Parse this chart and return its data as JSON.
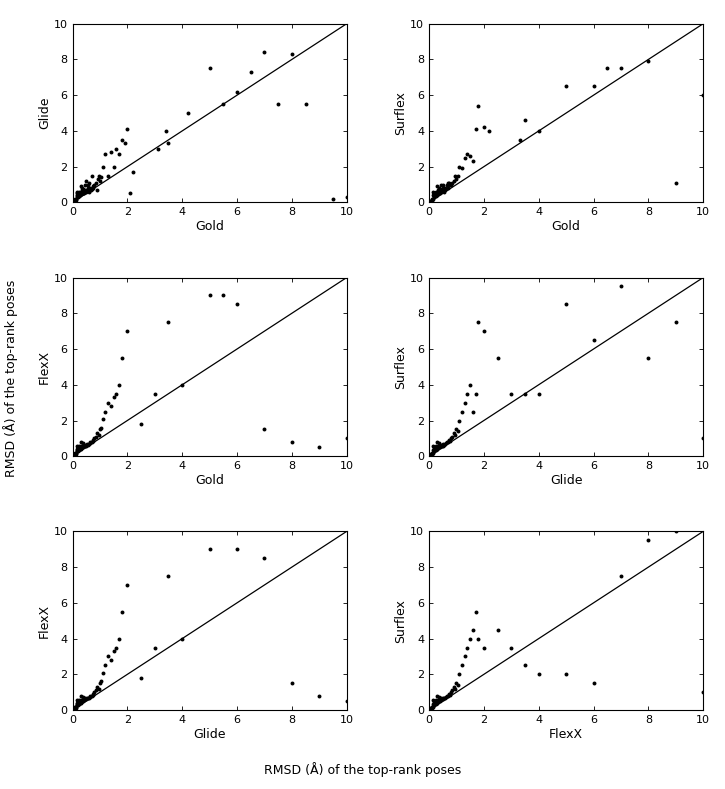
{
  "panel_configs": [
    {
      "xlabel": "Gold",
      "ylabel": "Glide"
    },
    {
      "xlabel": "Gold",
      "ylabel": "Surflex"
    },
    {
      "xlabel": "Gold",
      "ylabel": "FlexX"
    },
    {
      "xlabel": "Glide",
      "ylabel": "Surflex"
    },
    {
      "xlabel": "Glide",
      "ylabel": "FlexX"
    },
    {
      "xlabel": "FlexX",
      "ylabel": "Surflex"
    }
  ],
  "panel_data": [
    {
      "x": [
        0.05,
        0.07,
        0.08,
        0.1,
        0.1,
        0.12,
        0.13,
        0.15,
        0.15,
        0.17,
        0.18,
        0.2,
        0.2,
        0.22,
        0.23,
        0.25,
        0.25,
        0.27,
        0.28,
        0.3,
        0.3,
        0.32,
        0.33,
        0.35,
        0.35,
        0.37,
        0.38,
        0.4,
        0.4,
        0.42,
        0.43,
        0.45,
        0.45,
        0.47,
        0.5,
        0.5,
        0.52,
        0.55,
        0.55,
        0.58,
        0.6,
        0.6,
        0.63,
        0.65,
        0.68,
        0.7,
        0.7,
        0.73,
        0.75,
        0.8,
        0.85,
        0.9,
        0.92,
        0.95,
        1.0,
        1.05,
        1.1,
        1.2,
        1.3,
        1.4,
        1.5,
        1.6,
        1.7,
        1.8,
        1.9,
        2.0,
        2.1,
        2.2,
        3.1,
        3.4,
        3.5,
        4.2,
        5.0,
        5.5,
        6.0,
        6.5,
        7.0,
        7.5,
        8.0,
        8.5,
        9.5,
        10.0
      ],
      "y": [
        0.05,
        0.08,
        0.1,
        0.15,
        0.2,
        0.12,
        0.18,
        0.4,
        0.6,
        0.5,
        0.35,
        0.3,
        0.55,
        0.45,
        0.5,
        0.35,
        0.6,
        0.5,
        0.4,
        0.45,
        0.9,
        0.6,
        0.7,
        0.5,
        0.8,
        0.65,
        0.55,
        0.5,
        0.75,
        0.6,
        0.55,
        0.7,
        1.0,
        0.6,
        0.6,
        1.2,
        0.7,
        0.7,
        1.0,
        0.8,
        0.6,
        1.1,
        0.7,
        0.8,
        0.7,
        0.75,
        1.5,
        0.8,
        0.9,
        1.0,
        1.1,
        0.7,
        1.3,
        1.5,
        1.2,
        1.4,
        2.0,
        2.7,
        1.5,
        2.8,
        2.0,
        3.0,
        2.7,
        3.5,
        3.3,
        4.1,
        0.5,
        1.7,
        3.0,
        4.0,
        3.3,
        5.0,
        7.5,
        5.5,
        6.2,
        7.3,
        8.4,
        5.5,
        8.3,
        5.5,
        0.2,
        0.3
      ]
    },
    {
      "x": [
        0.05,
        0.07,
        0.08,
        0.1,
        0.1,
        0.12,
        0.13,
        0.15,
        0.15,
        0.17,
        0.18,
        0.2,
        0.2,
        0.22,
        0.23,
        0.25,
        0.25,
        0.27,
        0.28,
        0.3,
        0.3,
        0.32,
        0.33,
        0.35,
        0.37,
        0.4,
        0.4,
        0.42,
        0.45,
        0.45,
        0.5,
        0.5,
        0.52,
        0.55,
        0.6,
        0.6,
        0.65,
        0.68,
        0.7,
        0.72,
        0.75,
        0.8,
        0.85,
        0.9,
        0.95,
        1.0,
        1.05,
        1.1,
        1.2,
        1.3,
        1.4,
        1.5,
        1.6,
        1.7,
        1.8,
        2.0,
        2.2,
        3.3,
        3.5,
        4.0,
        5.0,
        6.0,
        6.5,
        7.0,
        8.0,
        9.0,
        10.0
      ],
      "y": [
        0.05,
        0.08,
        0.1,
        0.15,
        0.2,
        0.12,
        0.18,
        0.4,
        0.6,
        0.5,
        0.35,
        0.3,
        0.55,
        0.45,
        0.5,
        0.35,
        0.6,
        0.5,
        0.4,
        0.45,
        0.9,
        0.6,
        0.7,
        0.5,
        0.8,
        0.55,
        0.75,
        0.65,
        0.7,
        1.0,
        0.7,
        1.0,
        0.8,
        0.6,
        0.7,
        0.8,
        1.0,
        1.1,
        0.8,
        1.1,
        1.0,
        1.0,
        1.1,
        1.2,
        1.5,
        1.3,
        1.5,
        2.0,
        1.9,
        2.5,
        2.7,
        2.6,
        2.3,
        4.1,
        5.4,
        4.2,
        4.0,
        3.5,
        4.6,
        4.0,
        6.5,
        6.5,
        7.5,
        7.5,
        7.9,
        1.1,
        6.0
      ]
    },
    {
      "x": [
        0.05,
        0.07,
        0.08,
        0.1,
        0.1,
        0.12,
        0.13,
        0.15,
        0.15,
        0.17,
        0.18,
        0.2,
        0.2,
        0.22,
        0.23,
        0.25,
        0.25,
        0.27,
        0.28,
        0.3,
        0.3,
        0.32,
        0.35,
        0.38,
        0.4,
        0.42,
        0.45,
        0.47,
        0.5,
        0.52,
        0.55,
        0.6,
        0.63,
        0.65,
        0.7,
        0.73,
        0.75,
        0.8,
        0.85,
        0.9,
        0.95,
        1.0,
        1.05,
        1.1,
        1.2,
        1.3,
        1.4,
        1.5,
        1.6,
        1.7,
        1.8,
        2.0,
        2.5,
        3.0,
        3.5,
        4.0,
        5.0,
        5.5,
        6.0,
        7.0,
        8.0,
        9.0,
        10.0
      ],
      "y": [
        0.05,
        0.1,
        0.12,
        0.15,
        0.2,
        0.12,
        0.18,
        0.35,
        0.55,
        0.4,
        0.3,
        0.28,
        0.5,
        0.4,
        0.45,
        0.35,
        0.55,
        0.45,
        0.38,
        0.42,
        0.8,
        0.55,
        0.5,
        0.75,
        0.5,
        0.55,
        0.65,
        0.6,
        0.6,
        0.7,
        0.65,
        0.7,
        0.75,
        0.8,
        0.8,
        0.9,
        0.85,
        1.0,
        1.1,
        1.3,
        1.2,
        1.5,
        1.6,
        2.1,
        2.5,
        3.0,
        2.8,
        3.3,
        3.5,
        4.0,
        5.5,
        7.0,
        1.8,
        3.5,
        7.5,
        4.0,
        9.0,
        9.0,
        8.5,
        1.5,
        0.8,
        0.5,
        1.0
      ]
    },
    {
      "x": [
        0.05,
        0.07,
        0.08,
        0.1,
        0.1,
        0.12,
        0.13,
        0.15,
        0.15,
        0.17,
        0.18,
        0.2,
        0.2,
        0.22,
        0.23,
        0.25,
        0.25,
        0.27,
        0.28,
        0.3,
        0.3,
        0.32,
        0.35,
        0.38,
        0.4,
        0.42,
        0.45,
        0.47,
        0.5,
        0.52,
        0.55,
        0.6,
        0.63,
        0.65,
        0.7,
        0.73,
        0.75,
        0.8,
        0.85,
        0.9,
        0.95,
        1.0,
        1.05,
        1.1,
        1.2,
        1.3,
        1.4,
        1.5,
        1.6,
        1.7,
        1.8,
        2.0,
        2.5,
        3.0,
        3.5,
        4.0,
        5.0,
        6.0,
        7.0,
        8.0,
        9.0,
        10.0
      ],
      "y": [
        0.05,
        0.1,
        0.12,
        0.15,
        0.2,
        0.12,
        0.18,
        0.35,
        0.55,
        0.4,
        0.3,
        0.28,
        0.5,
        0.4,
        0.45,
        0.35,
        0.55,
        0.45,
        0.38,
        0.42,
        0.8,
        0.55,
        0.5,
        0.75,
        0.5,
        0.55,
        0.65,
        0.6,
        0.6,
        0.7,
        0.65,
        0.7,
        0.75,
        0.8,
        0.8,
        0.9,
        0.85,
        1.0,
        1.1,
        1.3,
        1.2,
        1.5,
        1.4,
        2.0,
        2.5,
        3.0,
        3.5,
        4.0,
        2.5,
        3.5,
        7.5,
        7.0,
        5.5,
        3.5,
        3.5,
        3.5,
        8.5,
        6.5,
        9.5,
        5.5,
        7.5,
        1.0
      ]
    },
    {
      "x": [
        0.05,
        0.07,
        0.08,
        0.1,
        0.1,
        0.12,
        0.13,
        0.15,
        0.15,
        0.17,
        0.18,
        0.2,
        0.2,
        0.22,
        0.23,
        0.25,
        0.25,
        0.27,
        0.28,
        0.3,
        0.3,
        0.32,
        0.35,
        0.38,
        0.4,
        0.42,
        0.45,
        0.47,
        0.5,
        0.52,
        0.55,
        0.6,
        0.63,
        0.65,
        0.7,
        0.73,
        0.75,
        0.8,
        0.85,
        0.9,
        0.95,
        1.0,
        1.05,
        1.1,
        1.2,
        1.3,
        1.4,
        1.5,
        1.6,
        1.7,
        1.8,
        2.0,
        2.5,
        3.0,
        3.5,
        4.0,
        5.0,
        6.0,
        7.0,
        8.0,
        9.0,
        10.0
      ],
      "y": [
        0.05,
        0.1,
        0.12,
        0.15,
        0.2,
        0.12,
        0.18,
        0.35,
        0.55,
        0.4,
        0.3,
        0.28,
        0.5,
        0.4,
        0.45,
        0.35,
        0.55,
        0.45,
        0.38,
        0.42,
        0.8,
        0.55,
        0.5,
        0.75,
        0.5,
        0.55,
        0.65,
        0.6,
        0.6,
        0.7,
        0.65,
        0.7,
        0.75,
        0.8,
        0.8,
        0.9,
        0.85,
        1.0,
        1.1,
        1.3,
        1.2,
        1.5,
        1.6,
        2.1,
        2.5,
        3.0,
        2.8,
        3.3,
        3.5,
        4.0,
        5.5,
        7.0,
        1.8,
        3.5,
        7.5,
        4.0,
        9.0,
        9.0,
        8.5,
        1.5,
        0.8,
        0.5
      ]
    },
    {
      "x": [
        0.05,
        0.07,
        0.08,
        0.1,
        0.1,
        0.12,
        0.13,
        0.15,
        0.15,
        0.17,
        0.18,
        0.2,
        0.2,
        0.22,
        0.23,
        0.25,
        0.25,
        0.27,
        0.28,
        0.3,
        0.3,
        0.32,
        0.35,
        0.38,
        0.4,
        0.42,
        0.45,
        0.47,
        0.5,
        0.52,
        0.55,
        0.6,
        0.63,
        0.65,
        0.7,
        0.73,
        0.75,
        0.8,
        0.85,
        0.9,
        0.95,
        1.0,
        1.05,
        1.1,
        1.2,
        1.3,
        1.4,
        1.5,
        1.6,
        1.7,
        1.8,
        2.0,
        2.5,
        3.0,
        3.5,
        4.0,
        5.0,
        6.0,
        7.0,
        8.0,
        9.0,
        10.0
      ],
      "y": [
        0.05,
        0.1,
        0.12,
        0.15,
        0.2,
        0.12,
        0.18,
        0.35,
        0.55,
        0.4,
        0.3,
        0.28,
        0.5,
        0.4,
        0.45,
        0.35,
        0.55,
        0.45,
        0.38,
        0.42,
        0.8,
        0.55,
        0.5,
        0.75,
        0.5,
        0.55,
        0.65,
        0.6,
        0.6,
        0.7,
        0.65,
        0.7,
        0.75,
        0.8,
        0.8,
        0.9,
        0.85,
        1.0,
        1.1,
        1.3,
        1.2,
        1.5,
        1.4,
        2.0,
        2.5,
        3.0,
        3.5,
        4.0,
        4.5,
        5.5,
        4.0,
        3.5,
        4.5,
        3.5,
        2.5,
        2.0,
        2.0,
        1.5,
        7.5,
        9.5,
        10.0,
        1.0
      ]
    }
  ],
  "dot_color": "#000000",
  "dot_size": 8,
  "line_color": "#000000",
  "background_color": "#ffffff",
  "ylabel_shared": "RMSD (Å) of the top-rank poses",
  "xlabel_shared": "RMSD (Å) of the top-rank poses",
  "axis_lim": [
    0,
    10
  ],
  "tick_positions": [
    0,
    2,
    4,
    6,
    8,
    10
  ]
}
